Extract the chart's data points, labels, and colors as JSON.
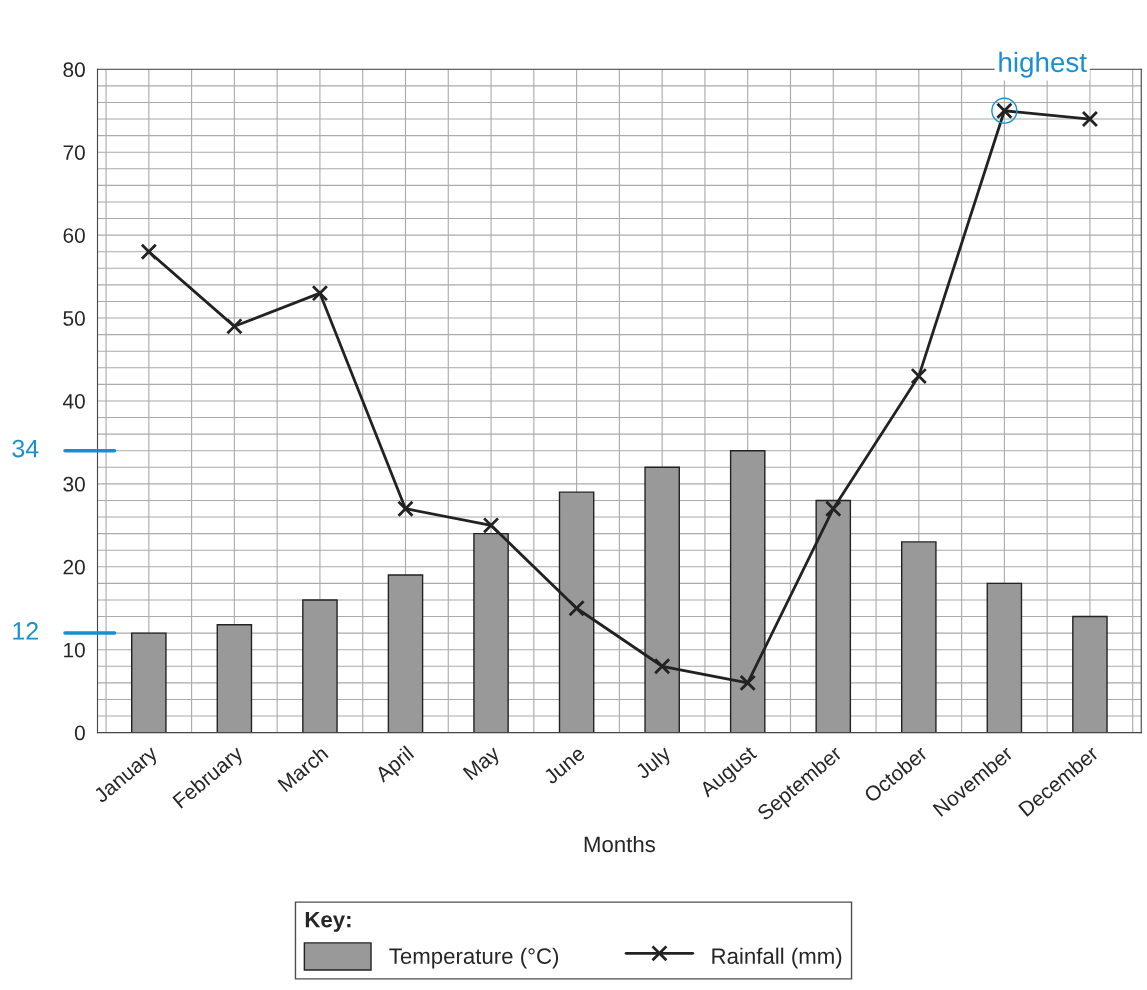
{
  "chart_data": {
    "type": "bar",
    "xlabel": "Months",
    "categories": [
      "January",
      "February",
      "March",
      "April",
      "May",
      "June",
      "July",
      "August",
      "September",
      "October",
      "November",
      "December"
    ],
    "series": [
      {
        "name": "Temperature (°C)",
        "color": "#999999",
        "values": [
          12,
          13,
          16,
          19,
          24,
          29,
          32,
          34,
          28,
          23,
          18,
          14
        ]
      },
      {
        "name": "Rainfall (mm)",
        "type": "line",
        "color": "#222222",
        "marker": "cross",
        "values": [
          58,
          49,
          53,
          27,
          25,
          15,
          8,
          6,
          27,
          43,
          75,
          74
        ]
      }
    ],
    "ylim": [
      0,
      80
    ],
    "yticks": [
      0,
      10,
      20,
      30,
      40,
      50,
      60,
      70,
      80
    ],
    "grid": true,
    "legend": "bottom",
    "legend_title": "Key:",
    "ref_lines": [
      {
        "axis": "y",
        "value": 34,
        "label": "34"
      },
      {
        "axis": "y",
        "value": 12,
        "label": "12"
      }
    ],
    "annotations": [
      {
        "text": "highest",
        "x": "November",
        "y": 75
      }
    ]
  }
}
